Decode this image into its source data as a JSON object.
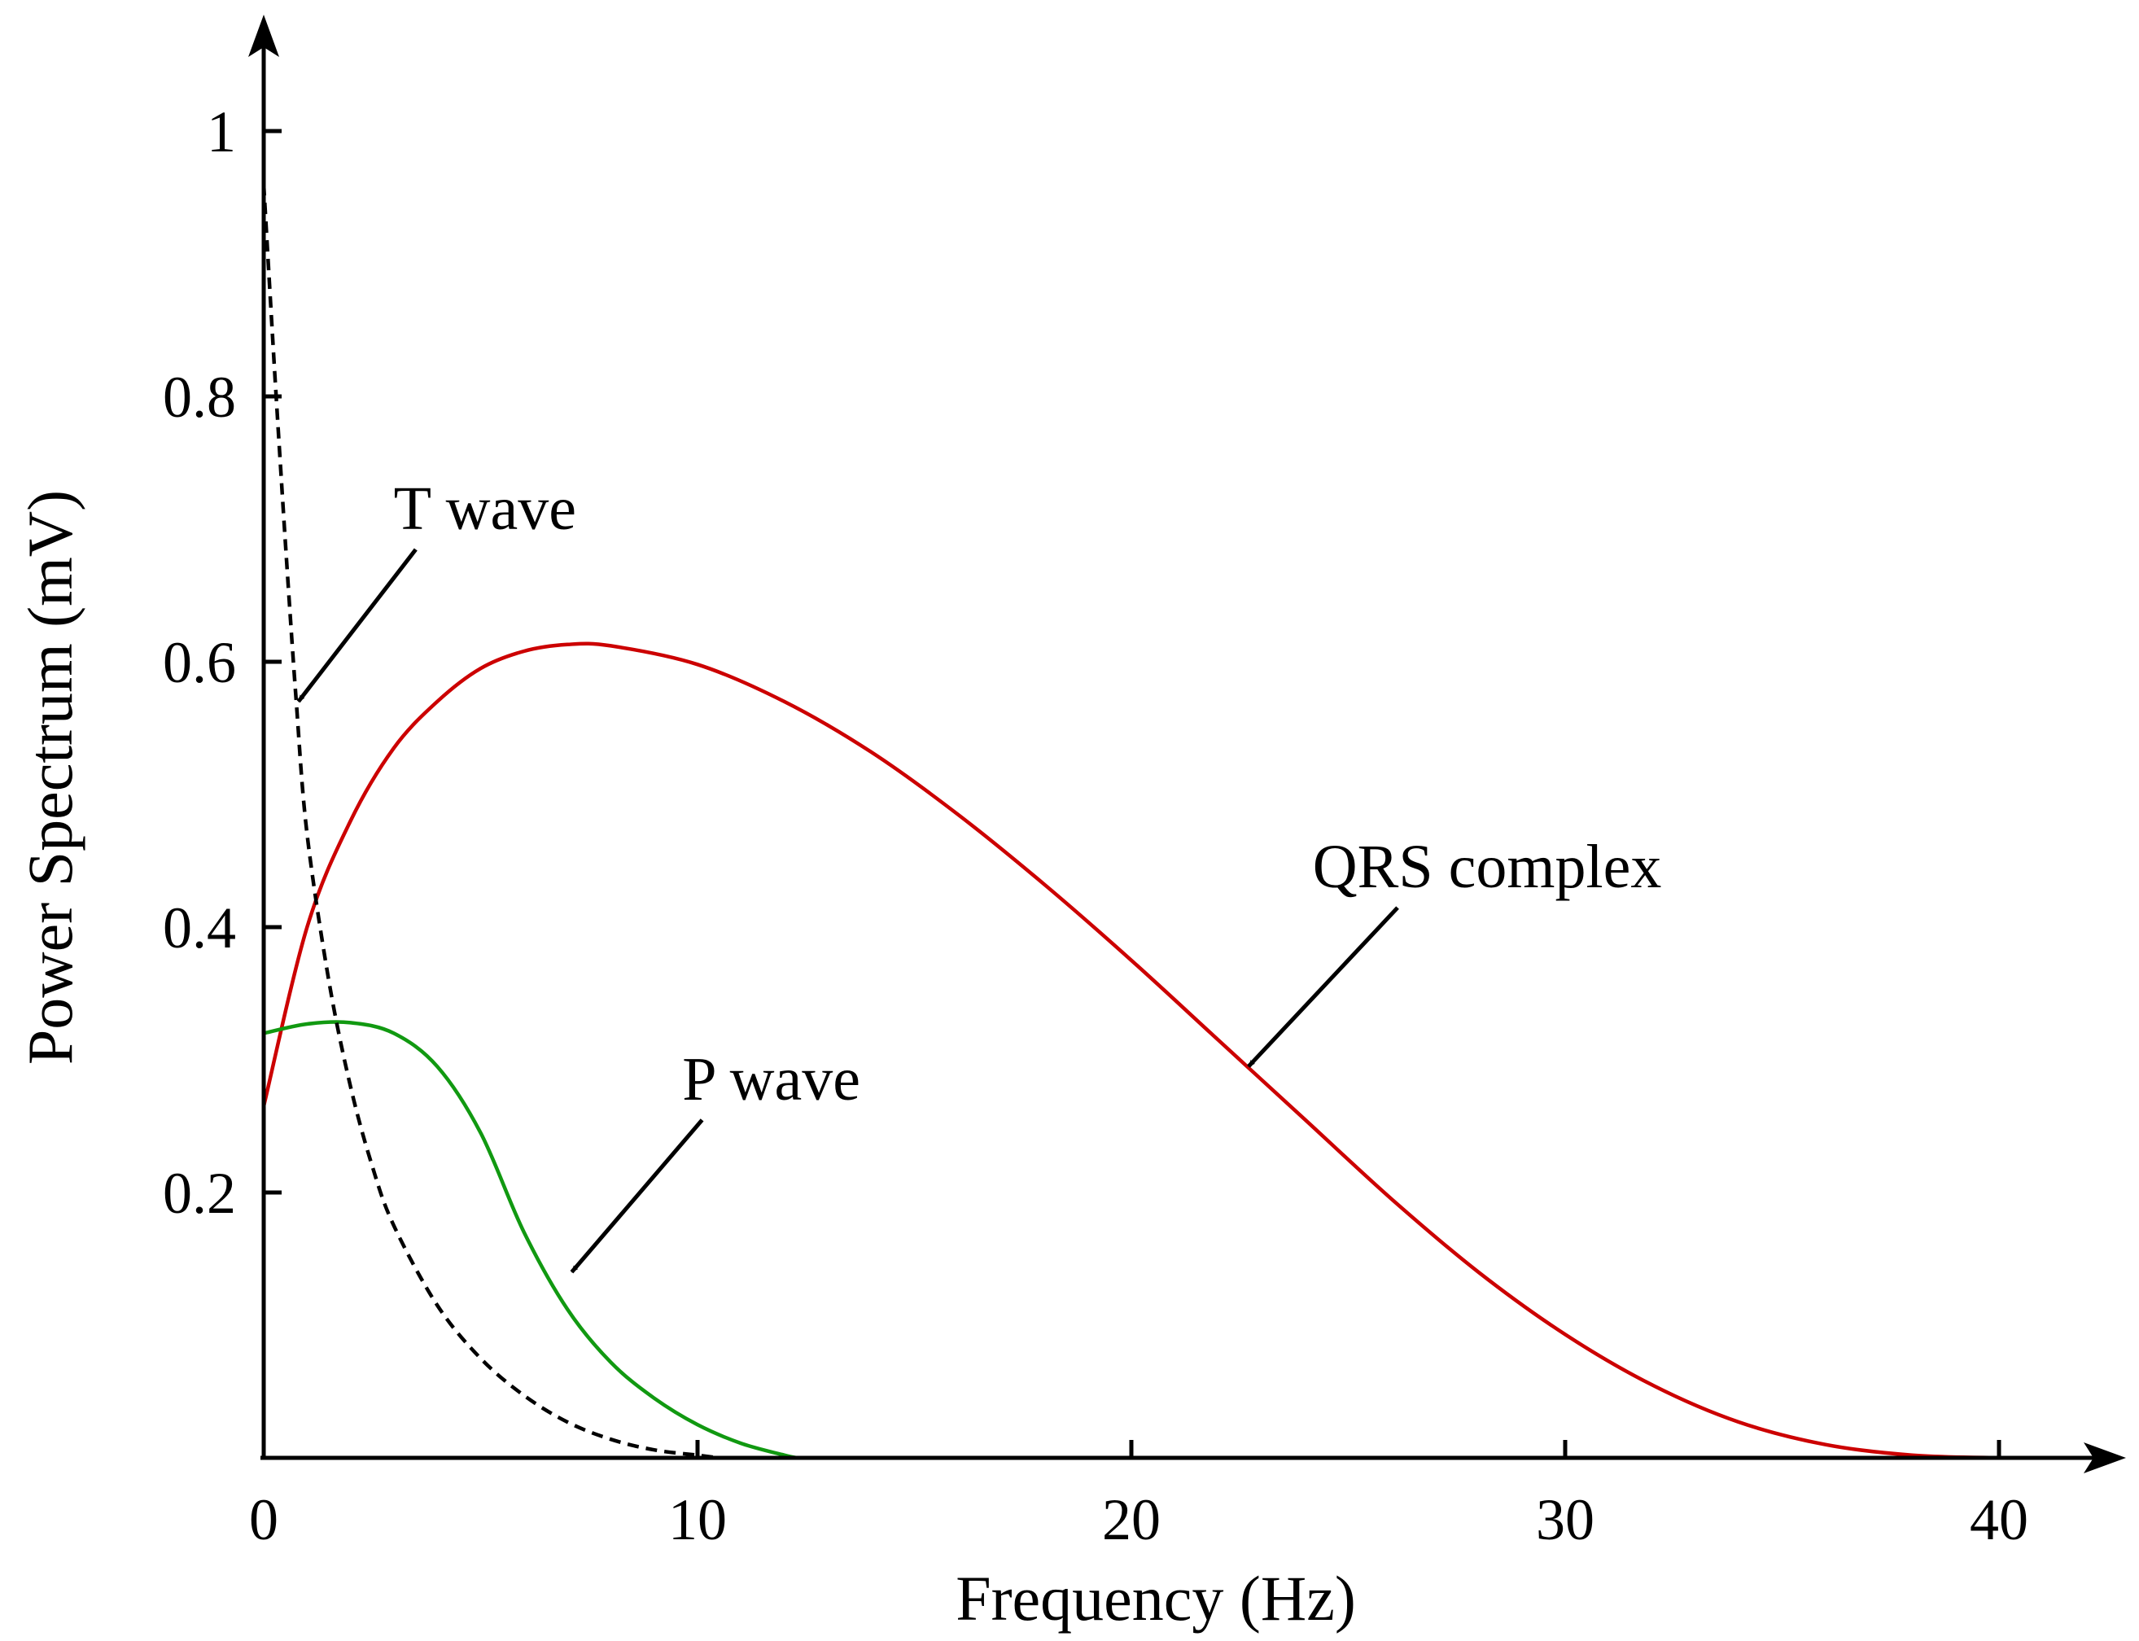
{
  "chart_data": {
    "type": "line",
    "title": "",
    "xlabel": "Frequency (Hz)",
    "ylabel": "Power Spectrum (mV)",
    "xlim": [
      0,
      42
    ],
    "ylim": [
      0,
      1.05
    ],
    "x_ticks": [
      0,
      10,
      20,
      30,
      40
    ],
    "x_tick_labels": [
      "0",
      "10",
      "20",
      "30",
      "40"
    ],
    "y_ticks": [
      0.2,
      0.4,
      0.6,
      0.8,
      1
    ],
    "y_tick_labels": [
      "0.2",
      "0.4",
      "0.6",
      "0.8",
      "1"
    ],
    "grid": false,
    "legend": "none",
    "series": [
      {
        "name": "QRS complex",
        "color": "#cc0000",
        "dash": "solid",
        "x": [
          0,
          1,
          2,
          3,
          4,
          5,
          6,
          7,
          8,
          10,
          12,
          14,
          16,
          18,
          20,
          22,
          24,
          26,
          28,
          30,
          32,
          34,
          36,
          38,
          40
        ],
        "y": [
          0.265,
          0.4,
          0.48,
          0.535,
          0.57,
          0.595,
          0.608,
          0.613,
          0.612,
          0.598,
          0.57,
          0.532,
          0.485,
          0.432,
          0.375,
          0.315,
          0.255,
          0.195,
          0.14,
          0.093,
          0.055,
          0.027,
          0.01,
          0.002,
          0
        ]
      },
      {
        "name": "P wave",
        "color": "#119911",
        "dash": "solid",
        "x": [
          0,
          1,
          2,
          3,
          4,
          5,
          6,
          7,
          8,
          9,
          10,
          11,
          12,
          12.3
        ],
        "y": [
          0.32,
          0.327,
          0.328,
          0.32,
          0.295,
          0.245,
          0.17,
          0.112,
          0.072,
          0.045,
          0.025,
          0.011,
          0.002,
          0
        ]
      },
      {
        "name": "T wave",
        "color": "#000000",
        "dash": "dashed",
        "x": [
          0,
          0.25,
          0.5,
          0.75,
          1,
          1.5,
          2,
          2.5,
          3,
          4,
          5,
          6,
          7,
          8,
          9,
          10,
          10.5
        ],
        "y": [
          0.96,
          0.82,
          0.69,
          0.57,
          0.47,
          0.36,
          0.28,
          0.22,
          0.175,
          0.115,
          0.075,
          0.047,
          0.027,
          0.014,
          0.006,
          0.002,
          0
        ]
      }
    ],
    "annotations": [
      {
        "text": "T wave",
        "x": 5.1,
        "y": 0.7,
        "target_x": 0.8,
        "target_y": 0.57
      },
      {
        "text": "QRS complex",
        "x": 28.2,
        "y": 0.43,
        "target_x": 22.7,
        "target_y": 0.295
      },
      {
        "text": "P wave",
        "x": 11.7,
        "y": 0.27,
        "target_x": 7.1,
        "target_y": 0.14
      }
    ]
  }
}
